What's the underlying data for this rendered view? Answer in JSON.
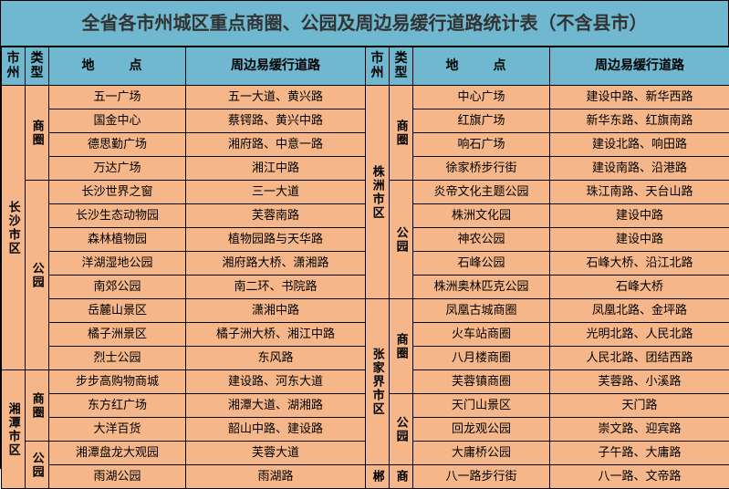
{
  "title": "全省各市州城区重点商圈、公园及周边易缓行道路统计表（不含县市）",
  "headers": {
    "city": "市州",
    "type": "类型",
    "loc": "地　点",
    "road": "周边易缓行道路"
  },
  "left": {
    "city1": "长沙市区",
    "city2": "湘潭市区",
    "type1": "商圈",
    "type2": "公园",
    "type3": "商圈",
    "type4": "公园",
    "rows": [
      {
        "loc": "五一广场",
        "road": "五一大道、黄兴路"
      },
      {
        "loc": "国金中心",
        "road": "蔡锷路、黄兴中路"
      },
      {
        "loc": "德思勤广场",
        "road": "湘府路、中意一路"
      },
      {
        "loc": "万达广场",
        "road": "湘江中路"
      },
      {
        "loc": "长沙世界之窗",
        "road": "三一大道"
      },
      {
        "loc": "长沙生态动物园",
        "road": "芙蓉南路"
      },
      {
        "loc": "森林植物园",
        "road": "植物园路与天华路"
      },
      {
        "loc": "洋湖湿地公园",
        "road": "湘府路大桥、潇湘路"
      },
      {
        "loc": "南郊公园",
        "road": "南二环、书院路"
      },
      {
        "loc": "岳麓山景区",
        "road": "潇湘中路"
      },
      {
        "loc": "橘子洲景区",
        "road": "橘子洲大桥、湘江中路"
      },
      {
        "loc": "烈士公园",
        "road": "东风路"
      },
      {
        "loc": "步步高购物商城",
        "road": "建设路、河东大道"
      },
      {
        "loc": "东方红广场",
        "road": "湘潭大道、湖湘路"
      },
      {
        "loc": "大洋百货",
        "road": "韶山中路、建设路"
      },
      {
        "loc": "湘潭盘龙大观园",
        "road": "芙蓉大道"
      },
      {
        "loc": "雨湖公园",
        "road": "雨湖路"
      }
    ]
  },
  "right": {
    "city1": "株洲市区",
    "city2": "张家界市区",
    "city3": "郴",
    "type1": "商圈",
    "type2": "公园",
    "type3": "商圈",
    "type4": "公园",
    "type5": "商",
    "rows": [
      {
        "loc": "中心广场",
        "road": "建设中路、新华西路"
      },
      {
        "loc": "红旗广场",
        "road": "新华东路、红旗南路"
      },
      {
        "loc": "响石广场",
        "road": "建设北路、响田路"
      },
      {
        "loc": "徐家桥步行街",
        "road": "建设南路、沿港路"
      },
      {
        "loc": "炎帝文化主题公园",
        "road": "珠江南路、天台山路"
      },
      {
        "loc": "株洲文化园",
        "road": "建设中路"
      },
      {
        "loc": "神农公园",
        "road": "建设中路"
      },
      {
        "loc": "石峰公园",
        "road": "石峰大桥、沿江北路"
      },
      {
        "loc": "株洲奥林匹克公园",
        "road": "石峰大桥"
      },
      {
        "loc": "凤凰古城商圈",
        "road": "凤凰北路、金坪路"
      },
      {
        "loc": "火车站商圈",
        "road": "光明北路、人民北路"
      },
      {
        "loc": "八月楼商圈",
        "road": "人民北路、团结西路"
      },
      {
        "loc": "芙蓉镇商圈",
        "road": "芙蓉路、小溪路"
      },
      {
        "loc": "天门山景区",
        "road": "天门路"
      },
      {
        "loc": "回龙观公园",
        "road": "崇文路、迎宾路"
      },
      {
        "loc": "大庸桥公园",
        "road": "子午路、大庸路"
      },
      {
        "loc": "八一路步行街",
        "road": "八一路、文帝路"
      }
    ]
  }
}
